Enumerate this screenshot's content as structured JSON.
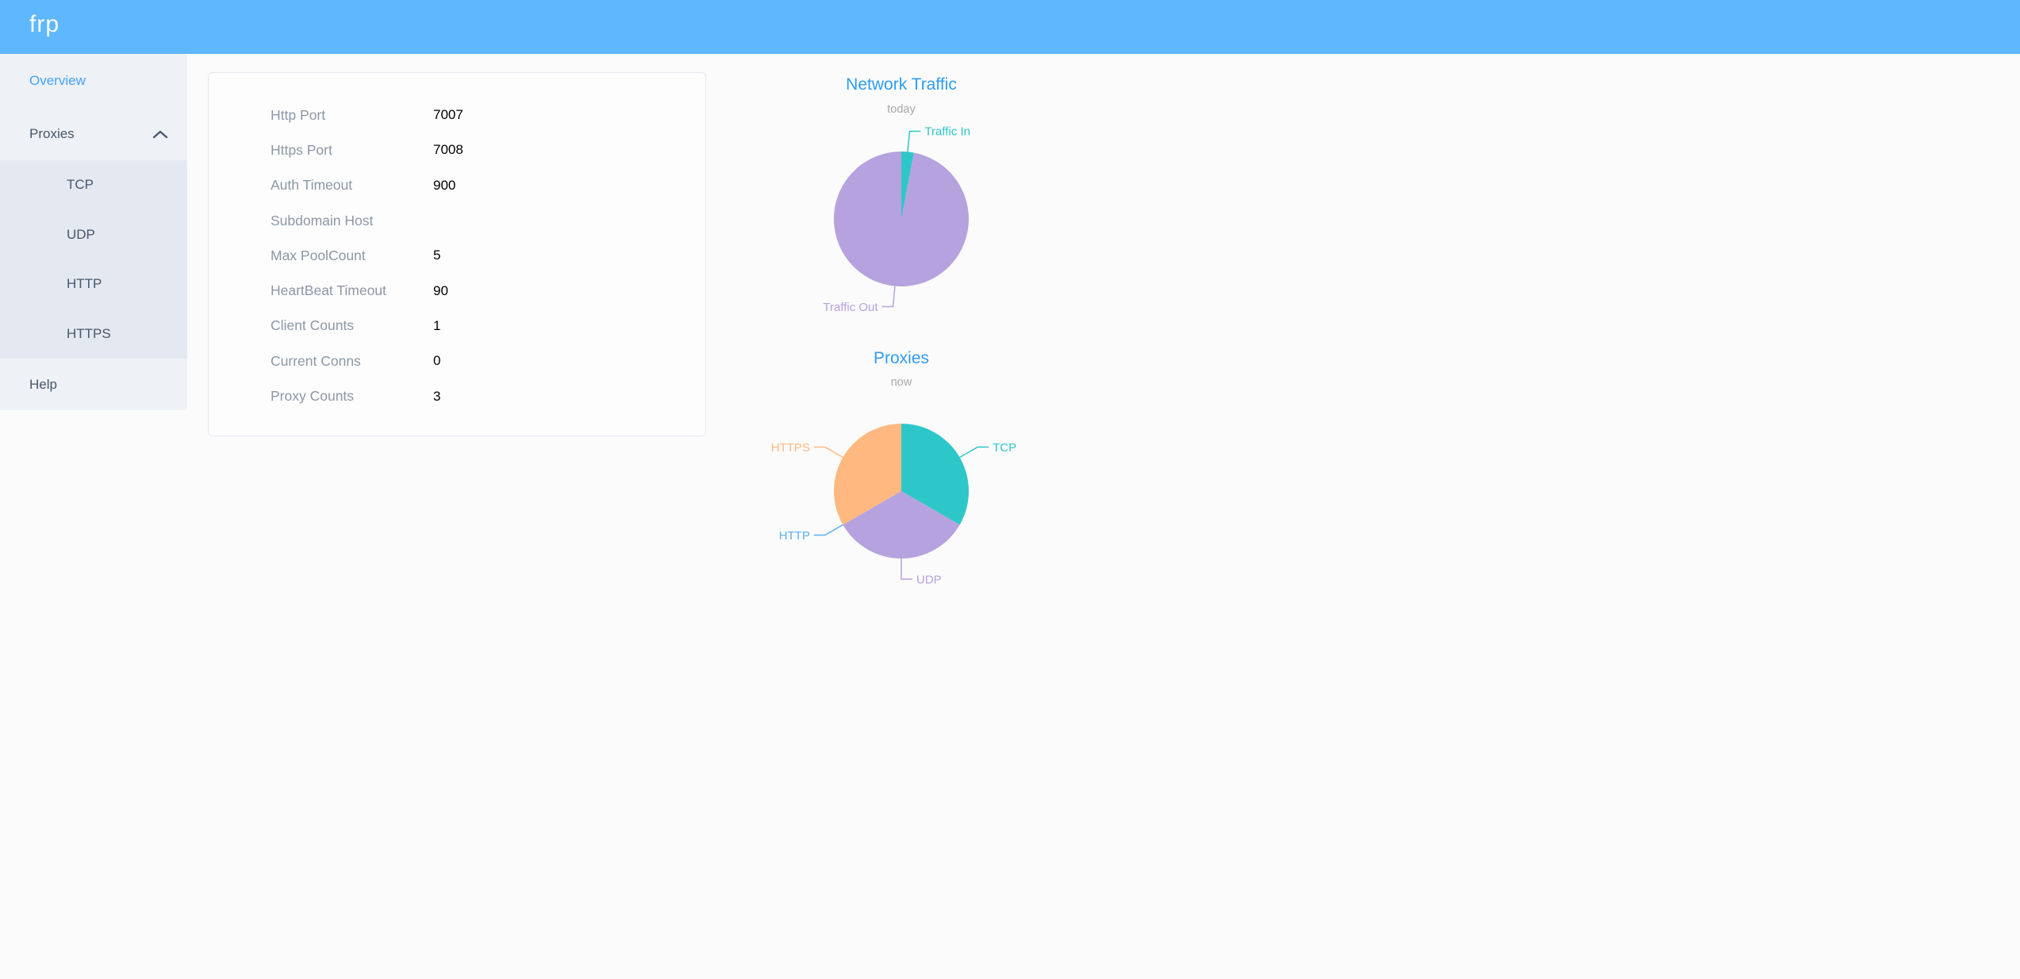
{
  "header": {
    "logo": "frp"
  },
  "sidebar": {
    "items": [
      {
        "label": "Overview",
        "active": true
      },
      {
        "label": "Proxies",
        "expanded": true,
        "children": [
          "TCP",
          "UDP",
          "HTTP",
          "HTTPS"
        ]
      },
      {
        "label": "Help"
      }
    ]
  },
  "overview_card": {
    "rows": [
      {
        "label": "Http Port",
        "value": "7007"
      },
      {
        "label": "Https Port",
        "value": "7008"
      },
      {
        "label": "Auth Timeout",
        "value": "900"
      },
      {
        "label": "Subdomain Host",
        "value": ""
      },
      {
        "label": "Max PoolCount",
        "value": "5"
      },
      {
        "label": "HeartBeat Timeout",
        "value": "90"
      },
      {
        "label": "Client Counts",
        "value": "1"
      },
      {
        "label": "Current Conns",
        "value": "0"
      },
      {
        "label": "Proxy Counts",
        "value": "3"
      }
    ]
  },
  "chart_data": [
    {
      "type": "pie",
      "title": "Network Traffic",
      "subtitle": "today",
      "labels": [
        "Traffic In",
        "Traffic Out"
      ],
      "values": [
        3,
        97
      ],
      "value_note": "percent of circle, estimated from slice angles",
      "colors": [
        "#2ec7c9",
        "#b6a2de"
      ],
      "start_angle_deg": 0,
      "label_position": "outside-connector",
      "legend": "none"
    },
    {
      "type": "pie",
      "title": "Proxies",
      "subtitle": "now",
      "labels": [
        "TCP",
        "UDP",
        "HTTP",
        "HTTPS"
      ],
      "values": [
        1,
        1,
        0,
        1
      ],
      "value_note": "proxy counts per type; three equal 120-degree slices, HTTP slice empty",
      "colors": [
        "#2ec7c9",
        "#b6a2de",
        "#5ab1ef",
        "#ffb980"
      ],
      "start_angle_deg": 0,
      "label_position": "outside-connector",
      "legend": "none"
    }
  ],
  "colors": {
    "header_bg": "#5fb8fd",
    "sidebar_bg": "#eef1f6",
    "submenu_bg": "#e4e8f1",
    "sidebar_text": "#48576a",
    "sidebar_active": "#42a3fd",
    "chart_title": "#2f9cf4",
    "form_label": "#8d97a5"
  }
}
